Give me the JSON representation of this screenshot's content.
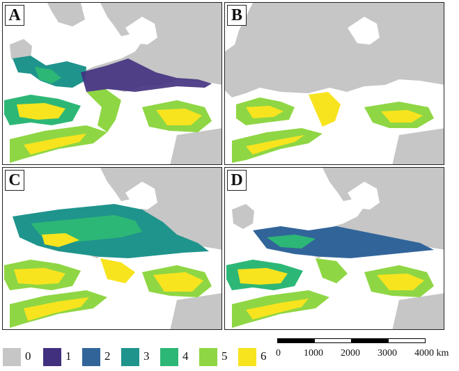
{
  "panels": [
    {
      "label": "A",
      "id": "panel-a"
    },
    {
      "label": "B",
      "id": "panel-b"
    },
    {
      "label": "C",
      "id": "panel-c"
    },
    {
      "label": "D",
      "id": "panel-d"
    }
  ],
  "legend": {
    "classes": [
      {
        "value": "0",
        "color": "#c6c6c6"
      },
      {
        "value": "1",
        "color": "#41307e"
      },
      {
        "value": "2",
        "color": "#31659a"
      },
      {
        "value": "3",
        "color": "#1f948c"
      },
      {
        "value": "4",
        "color": "#2db776"
      },
      {
        "value": "5",
        "color": "#8fd644"
      },
      {
        "value": "6",
        "color": "#f7e41f"
      }
    ]
  },
  "scale_bar": {
    "ticks": [
      "0",
      "1000",
      "2000",
      "3000",
      "4000 km"
    ]
  },
  "colors": {
    "land_unsuitable": "#c6c6c6",
    "sea": "#ffffff",
    "border": "#222222"
  }
}
